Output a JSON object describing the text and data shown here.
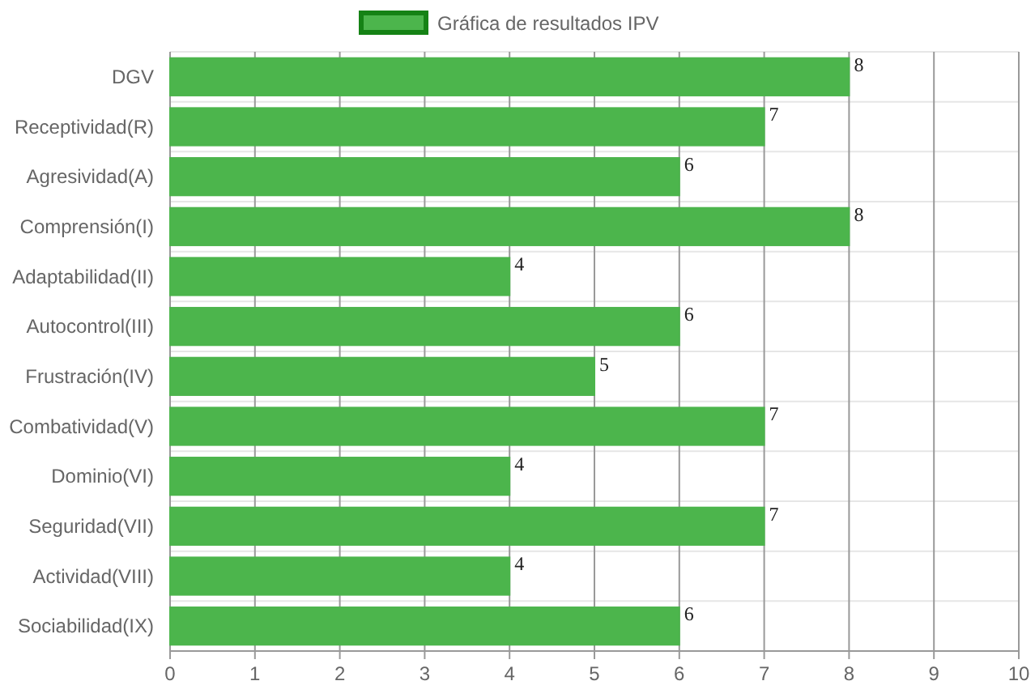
{
  "chart_data": {
    "type": "bar",
    "orientation": "horizontal",
    "categories": [
      "DGV",
      "Receptividad(R)",
      "Agresividad(A)",
      "Comprensión(I)",
      "Adaptabilidad(II)",
      "Autocontrol(III)",
      "Frustración(IV)",
      "Combatividad(V)",
      "Dominio(VI)",
      "Seguridad(VII)",
      "Actividad(VIII)",
      "Sociabilidad(IX)"
    ],
    "series": [
      {
        "name": "Gráfica de resultados IPV",
        "color": "#4cb54c",
        "values": [
          8,
          7,
          6,
          8,
          4,
          6,
          5,
          7,
          4,
          7,
          4,
          6
        ]
      }
    ],
    "xlim": [
      0,
      10
    ],
    "xticks": [
      0,
      1,
      2,
      3,
      4,
      5,
      6,
      7,
      8,
      9,
      10
    ],
    "grid": true,
    "legend": "top",
    "data_labels": true
  }
}
